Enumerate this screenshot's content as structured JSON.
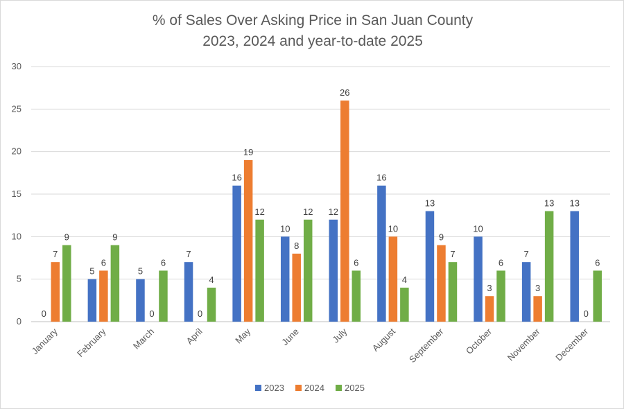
{
  "chart_data": {
    "type": "bar",
    "title": "% of Sales Over Asking Price in San Juan County",
    "subtitle": "2023, 2024 and year-to-date 2025",
    "categories": [
      "January",
      "February",
      "March",
      "April",
      "May",
      "June",
      "July",
      "August",
      "September",
      "October",
      "November",
      "December"
    ],
    "series": [
      {
        "name": "2023",
        "color": "#4472c4",
        "values": [
          0,
          5,
          5,
          7,
          16,
          10,
          12,
          16,
          13,
          10,
          7,
          13
        ]
      },
      {
        "name": "2024",
        "color": "#ed7d31",
        "values": [
          7,
          6,
          0,
          0,
          19,
          8,
          26,
          10,
          9,
          3,
          3,
          0
        ]
      },
      {
        "name": "2025",
        "color": "#70ad47",
        "values": [
          9,
          9,
          6,
          4,
          12,
          12,
          6,
          4,
          7,
          6,
          13,
          6
        ]
      }
    ],
    "ylim": [
      0,
      30
    ],
    "yticks": [
      "0",
      "5",
      "10",
      "15",
      "20",
      "25",
      "30"
    ],
    "grid": true,
    "legend": "bottom",
    "data_labels": true
  }
}
